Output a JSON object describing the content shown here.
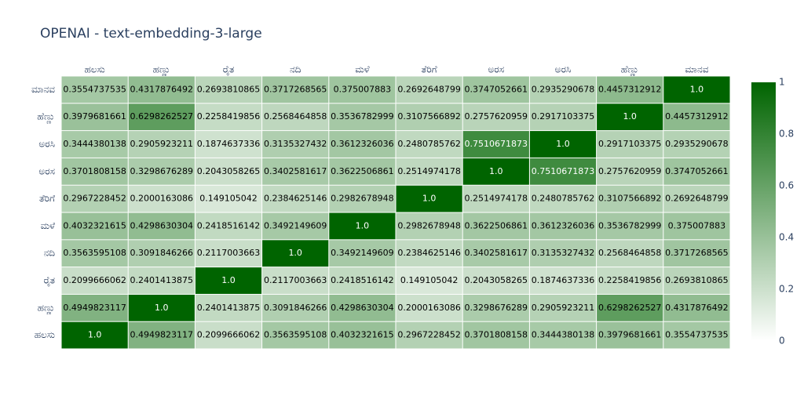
{
  "chart_data": {
    "type": "heatmap",
    "title": "OPENAI - text-embedding-3-large",
    "x": [
      "ಹಲಸು",
      "ಹಣ್ಣು",
      "ರೈತ",
      "ನದಿ",
      "ಮಳೆ",
      "ತೆರಿಗೆ",
      "ಅರಸ",
      "ಅರಸಿ",
      "ಹೆಣ್ಣು",
      "ಮಾನವ"
    ],
    "y": [
      "ಹಲಸು",
      "ಹಣ್ಣು",
      "ರೈತ",
      "ನದಿ",
      "ಮಳೆ",
      "ತೆರಿಗೆ",
      "ಅರಸ",
      "ಅರಸಿ",
      "ಹೆಣ್ಣು",
      "ಮಾನವ"
    ],
    "values": [
      [
        1,
        0.4949823117,
        0.2099666062,
        0.3563595108,
        0.4032321615,
        0.2967228452,
        0.3701808158,
        0.3444380138,
        0.3979681661,
        0.3554737535
      ],
      [
        0.4949823117,
        1,
        0.2401413875,
        0.3091846266,
        0.4298630304,
        0.2000163086,
        0.3298676289,
        0.2905923211,
        0.6298262527,
        0.4317876492
      ],
      [
        0.2099666062,
        0.2401413875,
        1,
        0.2117003663,
        0.2418516142,
        0.149105042,
        0.2043058265,
        0.1874637336,
        0.2258419856,
        0.2693810865
      ],
      [
        0.3563595108,
        0.3091846266,
        0.2117003663,
        1,
        0.3492149609,
        0.2384625146,
        0.3402581617,
        0.3135327432,
        0.2568464858,
        0.3717268565
      ],
      [
        0.4032321615,
        0.4298630304,
        0.2418516142,
        0.3492149609,
        1,
        0.2982678948,
        0.3622506861,
        0.3612326036,
        0.3536782999,
        0.375007883
      ],
      [
        0.2967228452,
        0.2000163086,
        0.149105042,
        0.2384625146,
        0.2982678948,
        1,
        0.2514974178,
        0.2480785762,
        0.3107566892,
        0.2692648799
      ],
      [
        0.3701808158,
        0.3298676289,
        0.2043058265,
        0.3402581617,
        0.3622506861,
        0.2514974178,
        1,
        0.7510671873,
        0.2757620959,
        0.3747052661
      ],
      [
        0.3444380138,
        0.2905923211,
        0.1874637336,
        0.3135327432,
        0.3612326036,
        0.2480785762,
        0.7510671873,
        1,
        0.2917103375,
        0.2935290678
      ],
      [
        0.3979681661,
        0.6298262527,
        0.2258419856,
        0.2568464858,
        0.3536782999,
        0.3107566892,
        0.2757620959,
        0.2917103375,
        1,
        0.4457312912
      ],
      [
        0.3554737535,
        0.4317876492,
        0.2693810865,
        0.3717268565,
        0.375007883,
        0.2692648799,
        0.3747052661,
        0.2935290678,
        0.4457312912,
        1
      ]
    ],
    "value_labels": [
      [
        "1.0",
        "0.4949823117",
        "0.2099666062",
        "0.3563595108",
        "0.4032321615",
        "0.2967228452",
        "0.3701808158",
        "0.3444380138",
        "0.3979681661",
        "0.3554737535"
      ],
      [
        "0.4949823117",
        "1.0",
        "0.2401413875",
        "0.3091846266",
        "0.4298630304",
        "0.2000163086",
        "0.3298676289",
        "0.2905923211",
        "0.6298262527",
        "0.4317876492"
      ],
      [
        "0.2099666062",
        "0.2401413875",
        "1.0",
        "0.2117003663",
        "0.2418516142",
        "0.149105042",
        "0.2043058265",
        "0.1874637336",
        "0.2258419856",
        "0.2693810865"
      ],
      [
        "0.3563595108",
        "0.3091846266",
        "0.2117003663",
        "1.0",
        "0.3492149609",
        "0.2384625146",
        "0.3402581617",
        "0.3135327432",
        "0.2568464858",
        "0.3717268565"
      ],
      [
        "0.4032321615",
        "0.4298630304",
        "0.2418516142",
        "0.3492149609",
        "1.0",
        "0.2982678948",
        "0.3622506861",
        "0.3612326036",
        "0.3536782999",
        "0.375007883"
      ],
      [
        "0.2967228452",
        "0.2000163086",
        "0.149105042",
        "0.2384625146",
        "0.2982678948",
        "1.0",
        "0.2514974178",
        "0.2480785762",
        "0.3107566892",
        "0.2692648799"
      ],
      [
        "0.3701808158",
        "0.3298676289",
        "0.2043058265",
        "0.3402581617",
        "0.3622506861",
        "0.2514974178",
        "1.0",
        "0.7510671873",
        "0.2757620959",
        "0.3747052661"
      ],
      [
        "0.3444380138",
        "0.2905923211",
        "0.1874637336",
        "0.3135327432",
        "0.3612326036",
        "0.2480785762",
        "0.7510671873",
        "1.0",
        "0.2917103375",
        "0.2935290678"
      ],
      [
        "0.3979681661",
        "0.6298262527",
        "0.2258419856",
        "0.2568464858",
        "0.3536782999",
        "0.3107566892",
        "0.2757620959",
        "0.2917103375",
        "1.0",
        "0.4457312912"
      ],
      [
        "0.3554737535",
        "0.4317876492",
        "0.2693810865",
        "0.3717268565",
        "0.375007883",
        "0.2692648799",
        "0.3747052661",
        "0.2935290678",
        "0.4457312912",
        "1.0"
      ]
    ],
    "colorscale": [
      "#ffffff",
      "#006400"
    ],
    "zlim": [
      0,
      1
    ],
    "zticks": [
      0,
      0.2,
      0.4,
      0.6,
      0.8,
      1
    ]
  }
}
